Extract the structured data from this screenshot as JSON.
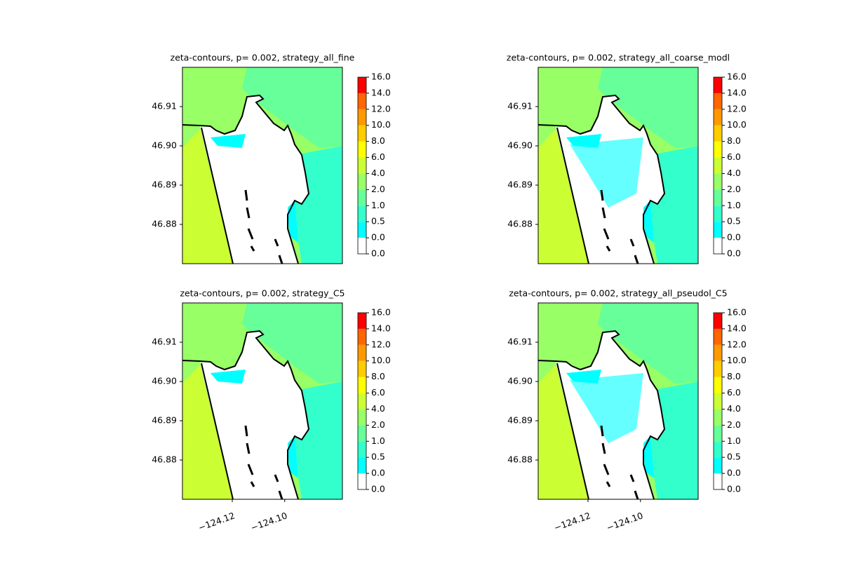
{
  "chart_data": [
    {
      "type": "contour",
      "title": "zeta-contours, p= 0.002, strategy_all_fine",
      "xlim": [
        -124.139,
        -124.078
      ],
      "ylim": [
        46.87,
        46.92
      ],
      "yticks": [
        46.88,
        46.89,
        {
          "value": 46.9,
          "label": "46.90"
        },
        46.91
      ],
      "levels": [
        {
          "value": 0,
          "label": "0.0"
        },
        {
          "value": 0,
          "label": "0.0"
        },
        0.5,
        {
          "value": 1,
          "label": "1.0"
        },
        {
          "value": 2,
          "label": "2.0"
        },
        {
          "value": 4,
          "label": "4.0"
        },
        {
          "value": 6,
          "label": "6.0"
        },
        {
          "value": 8,
          "label": "8.0"
        },
        {
          "value": 10,
          "label": "10.0"
        },
        {
          "value": 12,
          "label": "12.0"
        },
        {
          "value": 14,
          "label": "14.0"
        },
        {
          "value": 16,
          "label": "16.0"
        }
      ],
      "colors": [
        "#ffffff",
        "#00ffff",
        "#33ffcc",
        "#66ff99",
        "#99ff66",
        "#ccff33",
        "#ffff00",
        "#ffcc00",
        "#ff9900",
        "#ff6600",
        "#ff0000"
      ]
    },
    {
      "type": "contour",
      "title": "zeta-contours, p= 0.002, strategy_all_coarse_modl",
      "xlim": [
        -124.139,
        -124.078
      ],
      "ylim": [
        46.87,
        46.92
      ],
      "yticks": [
        46.88,
        46.89,
        {
          "value": 46.9,
          "label": "46.90"
        },
        46.91
      ],
      "levels": [
        {
          "value": 0,
          "label": "0.0"
        },
        {
          "value": 0,
          "label": "0.0"
        },
        0.5,
        {
          "value": 1,
          "label": "1.0"
        },
        {
          "value": 2,
          "label": "2.0"
        },
        {
          "value": 4,
          "label": "4.0"
        },
        {
          "value": 6,
          "label": "6.0"
        },
        {
          "value": 8,
          "label": "8.0"
        },
        {
          "value": 10,
          "label": "10.0"
        },
        {
          "value": 12,
          "label": "12.0"
        },
        {
          "value": 14,
          "label": "14.0"
        },
        {
          "value": 16,
          "label": "16.0"
        }
      ],
      "colors": [
        "#ffffff",
        "#00ffff",
        "#33ffcc",
        "#66ff99",
        "#99ff66",
        "#ccff33",
        "#ffff00",
        "#ffcc00",
        "#ff9900",
        "#ff6600",
        "#ff0000"
      ]
    },
    {
      "type": "contour",
      "title": "zeta-contours, p= 0.002, strategy_C5",
      "xlim": [
        -124.139,
        -124.078
      ],
      "ylim": [
        46.87,
        46.92
      ],
      "yticks": [
        46.88,
        46.89,
        {
          "value": 46.9,
          "label": "46.90"
        },
        46.91
      ],
      "xticks": [
        {
          "value": -124.12,
          "label": "−124.12"
        },
        {
          "value": -124.1,
          "label": "−124.10"
        }
      ],
      "levels": [
        {
          "value": 0,
          "label": "0.0"
        },
        {
          "value": 0,
          "label": "0.0"
        },
        0.5,
        {
          "value": 1,
          "label": "1.0"
        },
        {
          "value": 2,
          "label": "2.0"
        },
        {
          "value": 4,
          "label": "4.0"
        },
        {
          "value": 6,
          "label": "6.0"
        },
        {
          "value": 8,
          "label": "8.0"
        },
        {
          "value": 10,
          "label": "10.0"
        },
        {
          "value": 12,
          "label": "12.0"
        },
        {
          "value": 14,
          "label": "14.0"
        },
        {
          "value": 16,
          "label": "16.0"
        }
      ],
      "colors": [
        "#ffffff",
        "#00ffff",
        "#33ffcc",
        "#66ff99",
        "#99ff66",
        "#ccff33",
        "#ffff00",
        "#ffcc00",
        "#ff9900",
        "#ff6600",
        "#ff0000"
      ]
    },
    {
      "type": "contour",
      "title": "zeta-contours, p= 0.002, strategy_all_pseudol_C5",
      "xlim": [
        -124.139,
        -124.078
      ],
      "ylim": [
        46.87,
        46.92
      ],
      "yticks": [
        46.88,
        46.89,
        {
          "value": 46.9,
          "label": "46.90"
        },
        46.91
      ],
      "xticks": [
        {
          "value": -124.12,
          "label": "−124.12"
        },
        {
          "value": -124.1,
          "label": "−124.10"
        }
      ],
      "levels": [
        {
          "value": 0,
          "label": "0.0"
        },
        {
          "value": 0,
          "label": "0.0"
        },
        0.5,
        {
          "value": 1,
          "label": "1.0"
        },
        {
          "value": 2,
          "label": "2.0"
        },
        {
          "value": 4,
          "label": "4.0"
        },
        {
          "value": 6,
          "label": "6.0"
        },
        {
          "value": 8,
          "label": "8.0"
        },
        {
          "value": 10,
          "label": "10.0"
        },
        {
          "value": 12,
          "label": "12.0"
        },
        {
          "value": 14,
          "label": "14.0"
        },
        {
          "value": 16,
          "label": "16.0"
        }
      ],
      "colors": [
        "#ffffff",
        "#00ffff",
        "#33ffcc",
        "#66ff99",
        "#99ff66",
        "#ccff33",
        "#ffff00",
        "#ffcc00",
        "#ff9900",
        "#ff6600",
        "#ff0000"
      ]
    }
  ]
}
